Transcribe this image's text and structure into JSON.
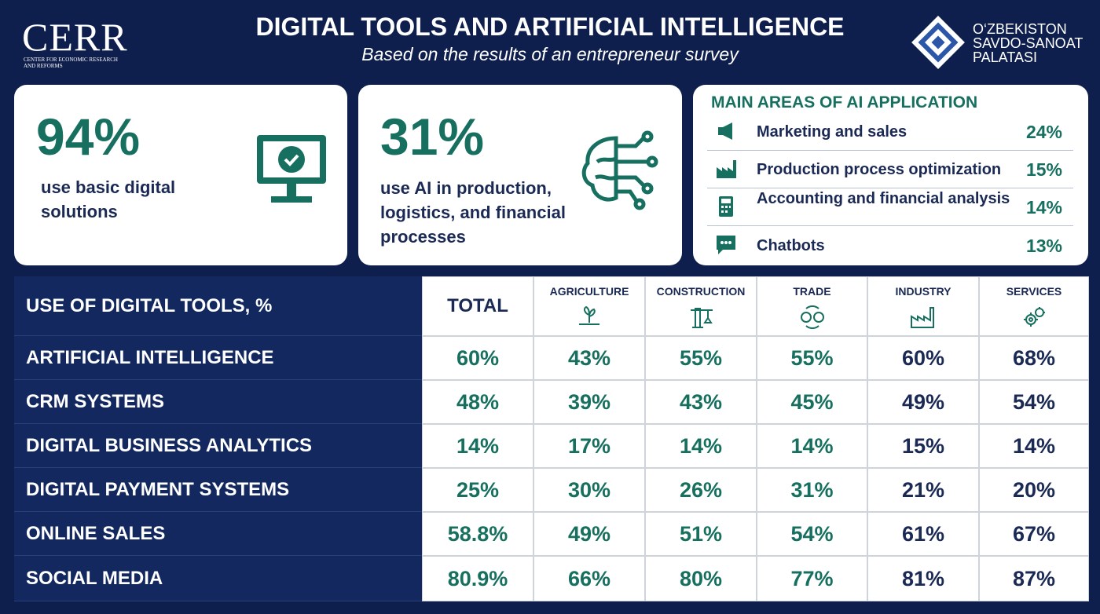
{
  "header": {
    "logo_left": {
      "name": "CERR",
      "subtitle": "CENTER FOR ECONOMIC RESEARCH AND REFORMS"
    },
    "title": "DIGITAL TOOLS AND ARTIFICIAL INTELLIGENCE",
    "subtitle": "Based on the results of an entrepreneur survey",
    "logo_right": [
      "O‘ZBEKISTON",
      "SAVDO-SANOAT",
      "PALATASI"
    ]
  },
  "cards": [
    {
      "value": "94%",
      "text": "use basic digital solutions"
    },
    {
      "value": "31%",
      "text": "use AI in production, logistics, and financial processes"
    }
  ],
  "ai_areas": {
    "title": "MAIN AREAS OF AI APPLICATION",
    "items": [
      {
        "label": "Marketing and sales",
        "value": "24%"
      },
      {
        "label": "Production process optimization",
        "value": "15%"
      },
      {
        "label": "Accounting and financial analysis",
        "value": "14%"
      },
      {
        "label": "Chatbots",
        "value": "13%"
      }
    ]
  },
  "table": {
    "title": "USE OF DIGITAL TOOLS, %",
    "columns": [
      "TOTAL",
      "AGRICULTURE",
      "CONSTRUCTION",
      "TRADE",
      "INDUSTRY",
      "SERVICES"
    ],
    "rows": [
      [
        "ARTIFICIAL INTELLIGENCE",
        "60%",
        "43%",
        "55%",
        "55%",
        "60%",
        "68%"
      ],
      [
        "CRM SYSTEMS",
        "48%",
        "39%",
        "43%",
        "45%",
        "49%",
        "54%"
      ],
      [
        "DIGITAL BUSINESS ANALYTICS",
        "14%",
        "17%",
        "14%",
        "14%",
        "15%",
        "14%"
      ],
      [
        "DIGITAL PAYMENT SYSTEMS",
        "25%",
        "30%",
        "26%",
        "31%",
        "21%",
        "20%"
      ],
      [
        "ONLINE SALES",
        "58.8%",
        "49%",
        "51%",
        "54%",
        "61%",
        "67%"
      ],
      [
        "SOCIAL MEDIA",
        "80.9%",
        "66%",
        "80%",
        "77%",
        "81%",
        "87%"
      ]
    ]
  }
}
